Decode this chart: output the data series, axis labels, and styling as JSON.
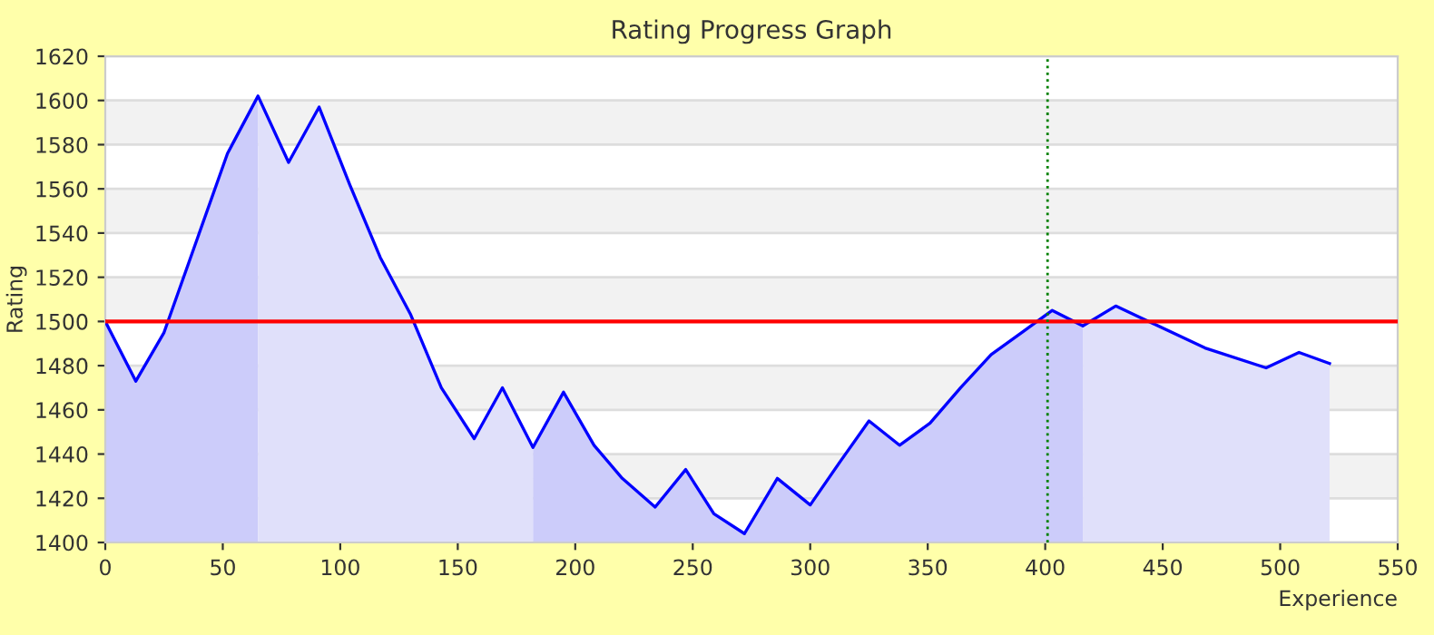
{
  "chart_data": {
    "type": "area",
    "title": "Rating Progress Graph",
    "xlabel": "Experience",
    "ylabel": "Rating",
    "x": [
      0,
      13,
      25,
      39,
      52,
      65,
      78,
      91,
      104,
      117,
      130,
      143,
      157,
      169,
      182,
      195,
      208,
      220,
      234,
      247,
      259,
      272,
      286,
      300,
      313,
      325,
      338,
      351,
      364,
      377,
      390,
      403,
      416,
      430,
      440,
      468,
      494,
      508,
      521
    ],
    "series": [
      {
        "color": "#ccccfa",
        "values": [
          1500,
          1473,
          1495,
          1537,
          1576,
          1602,
          null,
          null,
          null,
          null,
          null,
          null,
          null,
          null,
          1443,
          1468,
          1444,
          1429,
          1416,
          1433,
          1413,
          1404,
          1429,
          1417,
          1437,
          1455,
          1444,
          1454,
          1470,
          1485,
          1495,
          1505,
          1498,
          null,
          null,
          null,
          null,
          null,
          null
        ]
      },
      {
        "color": "#e0e0fa",
        "values": [
          null,
          null,
          null,
          null,
          null,
          1602,
          1572,
          1597,
          1562,
          1529,
          1503,
          1470,
          1447,
          1470,
          1443,
          null,
          null,
          null,
          null,
          null,
          null,
          null,
          null,
          null,
          null,
          null,
          null,
          null,
          null,
          null,
          null,
          null,
          1498,
          1507,
          1502,
          1488,
          1479,
          1486,
          1481
        ]
      },
      {
        "type": "line",
        "color": "#0000ff",
        "values": [
          1500,
          1473,
          1495,
          1537,
          1576,
          1602,
          1572,
          1597,
          1562,
          1529,
          1503,
          1470,
          1447,
          1470,
          1443,
          1468,
          1444,
          1429,
          1416,
          1433,
          1413,
          1404,
          1429,
          1417,
          1437,
          1455,
          1444,
          1454,
          1470,
          1485,
          1495,
          1505,
          1498,
          1507,
          1502,
          1488,
          1479,
          1486,
          1481
        ]
      }
    ],
    "xlim": [
      0,
      550
    ],
    "xticks": [
      0,
      50,
      100,
      150,
      200,
      250,
      300,
      350,
      400,
      450,
      500,
      550
    ],
    "ylim": [
      1400,
      1620
    ],
    "yticks": [
      1400,
      1420,
      1440,
      1460,
      1480,
      1500,
      1520,
      1540,
      1560,
      1580,
      1600,
      1620
    ],
    "ref_lines": [
      {
        "axis": "y",
        "value": 1500,
        "color": "#ff0000",
        "line_style": "solid"
      },
      {
        "axis": "x",
        "value": 401,
        "color": "#008000",
        "line_style": "dotted"
      }
    ],
    "grid": "y"
  }
}
